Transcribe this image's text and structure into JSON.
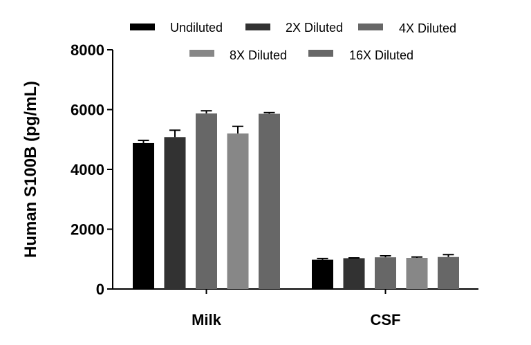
{
  "chart_data": {
    "type": "bar",
    "title": "",
    "xlabel": "",
    "ylabel": "Human S100B (pg/mL)",
    "ylim": [
      0,
      8000
    ],
    "yticks": [
      0,
      2000,
      4000,
      6000,
      8000
    ],
    "categories": [
      "Milk",
      "CSF"
    ],
    "series": [
      {
        "name": "Undiluted",
        "color": "#000000",
        "values": [
          4880,
          980
        ],
        "errors": [
          90,
          40
        ]
      },
      {
        "name": "2X Diluted",
        "color": "#323232",
        "values": [
          5080,
          1030
        ],
        "errors": [
          230,
          10
        ]
      },
      {
        "name": "4X Diluted",
        "color": "#676767",
        "values": [
          5870,
          1060
        ],
        "errors": [
          90,
          50
        ]
      },
      {
        "name": "8X Diluted",
        "color": "#878787",
        "values": [
          5200,
          1040
        ],
        "errors": [
          240,
          30
        ]
      },
      {
        "name": "16X Diluted",
        "color": "#676767",
        "values": [
          5860,
          1070
        ],
        "errors": [
          40,
          80
        ]
      }
    ],
    "legend": "top"
  }
}
